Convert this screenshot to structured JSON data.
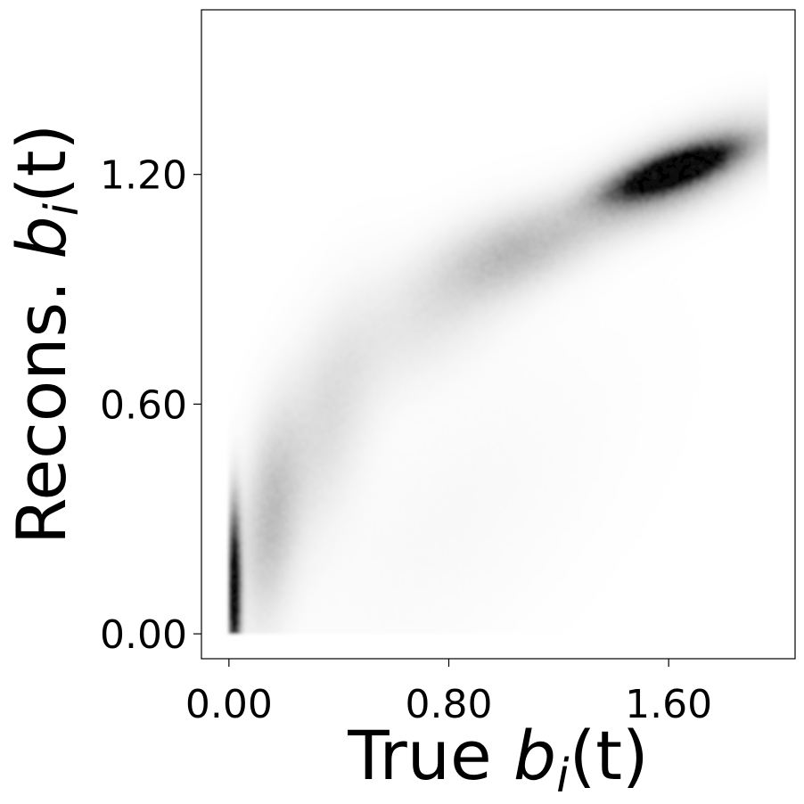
{
  "chart_data": {
    "type": "heatmap",
    "subtype": "2d-density-scatter",
    "colormap": "grayscale (white = low density, black = high density)",
    "xlabel": {
      "prefix": "True ",
      "var": "b",
      "sub": "i",
      "suffix": "(t)"
    },
    "ylabel": {
      "prefix": "Recons. ",
      "var": "b",
      "sub": "i",
      "suffix": "(t)"
    },
    "xlim": [
      -0.1,
      2.06
    ],
    "ylim": [
      -0.065,
      1.63
    ],
    "xticks": [
      0.0,
      0.8,
      1.6
    ],
    "xtick_labels": [
      "0.00",
      "0.80",
      "1.60"
    ],
    "yticks": [
      0.0,
      0.6,
      1.2
    ],
    "ytick_labels": [
      "0.00",
      "0.60",
      "1.20"
    ],
    "grid": false,
    "legend": "none",
    "density_blobs": [
      {
        "x": 1.62,
        "y": 1.21,
        "sx": 0.14,
        "sy": 0.045,
        "rho": 0.75,
        "weight": 1.0
      },
      {
        "x": 1.62,
        "y": 1.2,
        "sx": 0.22,
        "sy": 0.09,
        "rho": 0.7,
        "weight": 0.35
      },
      {
        "x": 1.05,
        "y": 1.0,
        "sx": 0.18,
        "sy": 0.08,
        "rho": 0.5,
        "weight": 0.18
      },
      {
        "x": 0.75,
        "y": 0.85,
        "sx": 0.22,
        "sy": 0.14,
        "rho": 0.6,
        "weight": 0.08
      },
      {
        "x": 0.35,
        "y": 0.55,
        "sx": 0.12,
        "sy": 0.2,
        "rho": 0.5,
        "weight": 0.1
      },
      {
        "x": 0.15,
        "y": 0.3,
        "sx": 0.07,
        "sy": 0.18,
        "rho": 0.3,
        "weight": 0.18
      },
      {
        "x": 0.02,
        "y": 0.12,
        "sx": 0.015,
        "sy": 0.13,
        "rho": 0.0,
        "weight": 1.0
      },
      {
        "x": 0.8,
        "y": 0.3,
        "sx": 0.4,
        "sy": 0.3,
        "rho": 0.6,
        "weight": 0.02
      }
    ]
  }
}
